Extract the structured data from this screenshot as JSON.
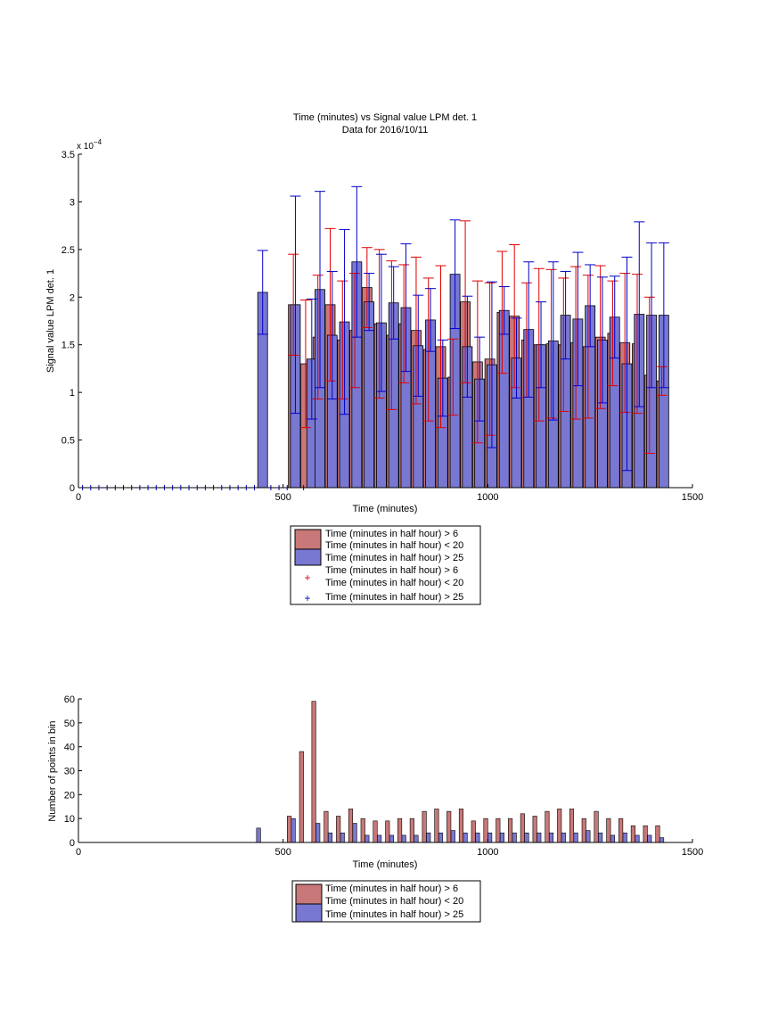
{
  "chart_data": [
    {
      "type": "bar",
      "title": "Time (minutes) vs Signal value LPM det. 1",
      "subtitle": "Data for 2016/10/11",
      "xlabel": "Time (minutes)",
      "ylabel": "Signal value LPM det. 1",
      "exponent_label": "x 10",
      "exponent_power": "−4",
      "xlim": [
        0,
        1500
      ],
      "ylim": [
        0,
        3.5
      ],
      "xticks": [
        "0",
        "500",
        "1000",
        "1500"
      ],
      "yticks": [
        "0",
        "0.5",
        "1",
        "1.5",
        "2",
        "2.5",
        "3",
        "3.5"
      ],
      "legend": {
        "placement": "below",
        "entries": [
          {
            "kind": "bar",
            "color": "#c87878",
            "lines": [
              "Time (minutes in half hour) > 6",
              "Time (minutes in half hour) < 20"
            ]
          },
          {
            "kind": "bar",
            "color": "#7878d2",
            "lines": [
              "Time (minutes in half hour) > 25"
            ]
          },
          {
            "kind": "marker",
            "color": "#e00000",
            "lines": [
              "Time (minutes in half hour) > 6",
              "Time (minutes in half hour) < 20"
            ]
          },
          {
            "kind": "marker",
            "color": "#0000c8",
            "lines": [
              "Time (minutes in half hour) > 25"
            ]
          }
        ]
      },
      "series": [
        {
          "color": "#c87878",
          "err_color": "#e00000",
          "x": [
            525,
            555,
            585,
            615,
            645,
            675,
            705,
            735,
            765,
            795,
            825,
            855,
            885,
            915,
            945,
            975,
            1005,
            1035,
            1065,
            1095,
            1125,
            1155,
            1185,
            1215,
            1245,
            1275,
            1305,
            1335,
            1365,
            1395,
            1425
          ],
          "values": [
            1.92,
            1.3,
            1.58,
            1.92,
            1.55,
            1.65,
            2.1,
            1.72,
            1.6,
            1.72,
            1.65,
            1.45,
            1.48,
            1.16,
            1.95,
            1.32,
            1.35,
            1.84,
            1.8,
            1.55,
            1.5,
            1.51,
            1.5,
            1.52,
            1.48,
            1.58,
            1.62,
            1.52,
            1.51,
            1.18,
            1.12
          ],
          "err": [
            0.53,
            0.67,
            0.65,
            0.8,
            0.62,
            0.6,
            0.42,
            0.78,
            0.78,
            0.62,
            0.77,
            0.75,
            0.85,
            0.4,
            0.85,
            0.85,
            0.8,
            0.64,
            0.75,
            0.6,
            0.8,
            0.78,
            0.7,
            0.8,
            0.75,
            0.75,
            0.55,
            0.73,
            0.73,
            0.82,
            0.15
          ]
        },
        {
          "color": "#7878d2",
          "err_color": "#0000c8",
          "x": [
            10,
            30,
            50,
            70,
            90,
            110,
            130,
            150,
            170,
            190,
            210,
            230,
            250,
            270,
            290,
            310,
            330,
            350,
            370,
            390,
            410,
            430,
            450,
            470,
            490,
            510,
            530,
            550,
            570,
            590,
            620,
            650,
            680,
            710,
            740,
            770,
            800,
            830,
            860,
            890,
            920,
            950,
            980,
            1010,
            1040,
            1070,
            1100,
            1130,
            1160,
            1190,
            1220,
            1250,
            1280,
            1310,
            1340,
            1370,
            1400,
            1430
          ],
          "values": [
            0,
            0,
            0,
            0,
            0,
            0,
            0,
            0,
            0,
            0,
            0,
            0,
            0,
            0,
            0,
            0,
            0,
            0,
            0,
            0,
            0,
            0,
            2.05,
            0,
            0,
            0,
            1.92,
            0,
            1.35,
            2.08,
            1.6,
            1.74,
            2.37,
            1.95,
            1.73,
            1.94,
            1.89,
            1.49,
            1.76,
            1.15,
            2.24,
            1.48,
            1.14,
            1.29,
            1.86,
            1.36,
            1.66,
            1.5,
            1.54,
            1.81,
            1.77,
            1.91,
            1.55,
            1.79,
            1.3,
            1.82,
            1.81,
            1.81
          ],
          "err": [
            0,
            0,
            0,
            0,
            0,
            0,
            0,
            0,
            0,
            0,
            0,
            0,
            0,
            0,
            0,
            0,
            0,
            0,
            0,
            0,
            0,
            0,
            0.44,
            0,
            0,
            0,
            1.14,
            0,
            0.63,
            1.03,
            0.67,
            0.97,
            0.79,
            0.3,
            0.72,
            0.38,
            0.67,
            0.53,
            0.33,
            0.4,
            0.57,
            0.53,
            0.44,
            0.87,
            0.25,
            0.42,
            0.71,
            0.45,
            0.83,
            0.46,
            0.7,
            0.43,
            0.66,
            0.43,
            1.12,
            0.97,
            0.76,
            0.76
          ]
        }
      ]
    },
    {
      "type": "bar",
      "xlabel": "Time (minutes)",
      "ylabel": "Number of points in bin",
      "xlim": [
        0,
        1500
      ],
      "ylim": [
        0,
        60
      ],
      "xticks": [
        "0",
        "500",
        "1000",
        "1500"
      ],
      "yticks": [
        "0",
        "10",
        "20",
        "30",
        "40",
        "50",
        "60"
      ],
      "legend": {
        "placement": "below",
        "entries": [
          {
            "kind": "bar",
            "color": "#c87878",
            "lines": [
              "Time (minutes in half hour) > 6",
              "Time (minutes in half hour) < 20"
            ]
          },
          {
            "kind": "bar",
            "color": "#7878d2",
            "lines": [
              "Time (minutes in half hour) > 25"
            ]
          }
        ]
      },
      "series": [
        {
          "color": "#c87878",
          "x": [
            515,
            545,
            575,
            605,
            635,
            665,
            695,
            725,
            755,
            785,
            815,
            845,
            875,
            905,
            935,
            965,
            995,
            1025,
            1055,
            1085,
            1115,
            1145,
            1175,
            1205,
            1235,
            1265,
            1295,
            1325,
            1355,
            1385,
            1415
          ],
          "values": [
            11,
            38,
            59,
            13,
            11,
            14,
            10,
            9,
            9,
            10,
            10,
            13,
            14,
            13,
            14,
            9,
            10,
            10,
            10,
            12,
            11,
            13,
            14,
            14,
            10,
            13,
            10,
            10,
            7,
            7,
            7
          ]
        },
        {
          "color": "#7878d2",
          "x": [
            440,
            525,
            585,
            615,
            645,
            675,
            705,
            735,
            765,
            795,
            825,
            855,
            885,
            915,
            945,
            975,
            1005,
            1035,
            1065,
            1095,
            1125,
            1155,
            1185,
            1215,
            1245,
            1275,
            1305,
            1335,
            1365,
            1395,
            1425
          ],
          "values": [
            6,
            10,
            8,
            4,
            4,
            8,
            3,
            3,
            3,
            3,
            3,
            4,
            4,
            5,
            4,
            4,
            4,
            4,
            4,
            4,
            4,
            4,
            4,
            4,
            5,
            4,
            3,
            4,
            3,
            3,
            2
          ]
        }
      ]
    }
  ]
}
